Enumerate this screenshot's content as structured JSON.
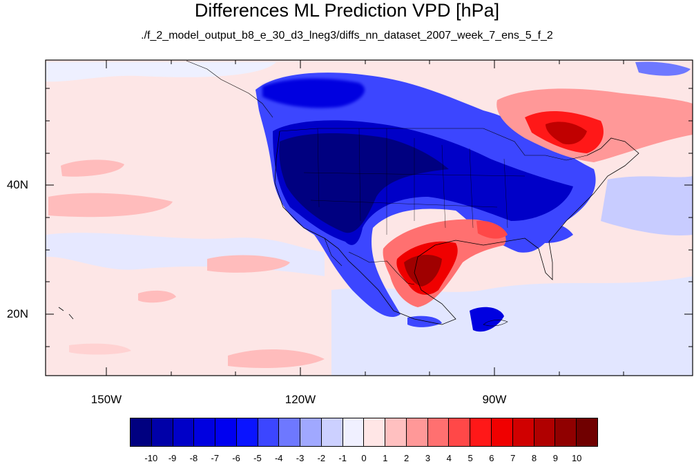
{
  "title": "Differences ML Prediction VPD [hPa]",
  "subtitle": "./f_2_model_output_b8_e_30_d3_lneg3/diffs_nn_dataset_2007_week_7_ens_5_f_2",
  "lon_labels": [
    "150W",
    "120W",
    "90W"
  ],
  "lat_labels": [
    "40N",
    "20N"
  ],
  "extent": {
    "lon": [
      -160,
      -60
    ],
    "lat": [
      10,
      58
    ]
  },
  "colorbar": {
    "labels": [
      "-10",
      "-9",
      "-8",
      "-7",
      "-6",
      "-5",
      "-4",
      "-3",
      "-2",
      "-1",
      "0",
      "1",
      "2",
      "3",
      "4",
      "5",
      "6",
      "7",
      "8",
      "9",
      "10"
    ],
    "colors": [
      "#000080",
      "#0000a8",
      "#0000c8",
      "#0000e0",
      "#0000f0",
      "#0a14ff",
      "#3c46ff",
      "#6e78ff",
      "#a0a8ff",
      "#ccd0ff",
      "#f0f0ff",
      "#ffe6e6",
      "#ffc0c0",
      "#ff9898",
      "#ff7070",
      "#ff4848",
      "#ff1818",
      "#f00000",
      "#d00000",
      "#b00000",
      "#900000",
      "#700000"
    ]
  }
}
